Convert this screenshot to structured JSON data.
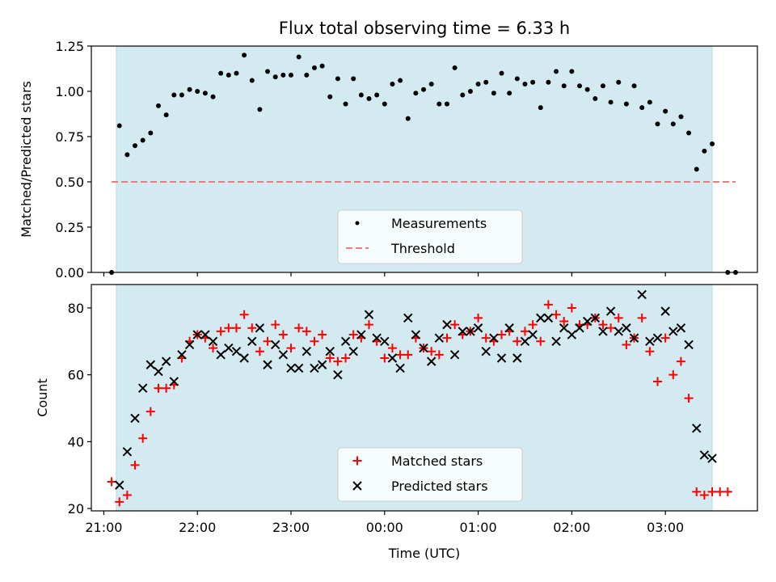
{
  "chart_data": [
    {
      "type": "scatter",
      "title": "Flux total observing time = 6.33 h",
      "xlabel": "",
      "ylabel": "Matched/Predicted stars",
      "ylim": [
        0,
        1.25
      ],
      "yticks": [
        "0.00",
        "0.25",
        "0.50",
        "0.75",
        "1.00",
        "1.25"
      ],
      "x_range_utc": [
        "20:52",
        "03:59"
      ],
      "observing_window": [
        "21:08",
        "03:30"
      ],
      "observing_window_color": "#d3eaf0",
      "legend_position": "lower center",
      "series": [
        {
          "name": "Measurements",
          "marker": "dot",
          "color": "#000000",
          "points": [
            [
              "21:05",
              0.0
            ],
            [
              "21:10",
              0.81
            ],
            [
              "21:15",
              0.65
            ],
            [
              "21:20",
              0.7
            ],
            [
              "21:25",
              0.73
            ],
            [
              "21:30",
              0.77
            ],
            [
              "21:35",
              0.92
            ],
            [
              "21:40",
              0.87
            ],
            [
              "21:45",
              0.98
            ],
            [
              "21:50",
              0.98
            ],
            [
              "21:55",
              1.01
            ],
            [
              "22:00",
              1.0
            ],
            [
              "22:05",
              0.99
            ],
            [
              "22:10",
              0.97
            ],
            [
              "22:15",
              1.1
            ],
            [
              "22:20",
              1.09
            ],
            [
              "22:25",
              1.1
            ],
            [
              "22:30",
              1.2
            ],
            [
              "22:35",
              1.06
            ],
            [
              "22:40",
              0.9
            ],
            [
              "22:45",
              1.11
            ],
            [
              "22:50",
              1.08
            ],
            [
              "22:55",
              1.09
            ],
            [
              "23:00",
              1.09
            ],
            [
              "23:05",
              1.19
            ],
            [
              "23:10",
              1.09
            ],
            [
              "23:15",
              1.13
            ],
            [
              "23:20",
              1.14
            ],
            [
              "23:25",
              0.97
            ],
            [
              "23:30",
              1.07
            ],
            [
              "23:35",
              0.93
            ],
            [
              "23:40",
              1.07
            ],
            [
              "23:45",
              0.98
            ],
            [
              "23:50",
              0.96
            ],
            [
              "23:55",
              0.98
            ],
            [
              "00:00",
              0.93
            ],
            [
              "00:05",
              1.04
            ],
            [
              "00:10",
              1.06
            ],
            [
              "00:15",
              0.85
            ],
            [
              "00:20",
              0.99
            ],
            [
              "00:25",
              1.01
            ],
            [
              "00:30",
              1.04
            ],
            [
              "00:35",
              0.93
            ],
            [
              "00:40",
              0.93
            ],
            [
              "00:45",
              1.13
            ],
            [
              "00:50",
              0.98
            ],
            [
              "00:55",
              1.0
            ],
            [
              "01:00",
              1.04
            ],
            [
              "01:05",
              1.05
            ],
            [
              "01:10",
              0.99
            ],
            [
              "01:15",
              1.1
            ],
            [
              "01:20",
              0.99
            ],
            [
              "01:25",
              1.07
            ],
            [
              "01:30",
              1.04
            ],
            [
              "01:35",
              1.05
            ],
            [
              "01:40",
              0.91
            ],
            [
              "01:45",
              1.05
            ],
            [
              "01:50",
              1.11
            ],
            [
              "01:55",
              1.03
            ],
            [
              "02:00",
              1.11
            ],
            [
              "02:05",
              1.03
            ],
            [
              "02:10",
              1.01
            ],
            [
              "02:15",
              0.96
            ],
            [
              "02:20",
              1.03
            ],
            [
              "02:25",
              0.94
            ],
            [
              "02:30",
              1.05
            ],
            [
              "02:35",
              0.93
            ],
            [
              "02:40",
              1.03
            ],
            [
              "02:45",
              0.91
            ],
            [
              "02:50",
              0.94
            ],
            [
              "02:55",
              0.82
            ],
            [
              "03:00",
              0.89
            ],
            [
              "03:05",
              0.82
            ],
            [
              "03:10",
              0.86
            ],
            [
              "03:15",
              0.77
            ],
            [
              "03:20",
              0.57
            ],
            [
              "03:25",
              0.67
            ],
            [
              "03:30",
              0.71
            ],
            [
              "03:40",
              0.0
            ],
            [
              "03:45",
              0.0
            ]
          ]
        },
        {
          "name": "Threshold",
          "marker": "dashed-line",
          "color": "#f07a7a",
          "points": [
            [
              "21:05",
              0.5
            ],
            [
              "03:45",
              0.5
            ]
          ]
        }
      ]
    },
    {
      "type": "scatter",
      "title": "",
      "xlabel": "Time (UTC)",
      "ylabel": "Count",
      "ylim": [
        19.3,
        87
      ],
      "yticks": [
        "20",
        "40",
        "60",
        "80"
      ],
      "xticks": [
        "21:00",
        "22:00",
        "23:00",
        "00:00",
        "01:00",
        "02:00",
        "03:00"
      ],
      "x_range_utc": [
        "20:52",
        "03:59"
      ],
      "observing_window": [
        "21:08",
        "03:30"
      ],
      "observing_window_color": "#d3eaf0",
      "legend_position": "lower center",
      "series": [
        {
          "name": "Matched stars",
          "marker": "plus",
          "color": "#ff0000",
          "points": [
            [
              "21:05",
              28
            ],
            [
              "21:10",
              22
            ],
            [
              "21:15",
              24
            ],
            [
              "21:20",
              33
            ],
            [
              "21:25",
              41
            ],
            [
              "21:30",
              49
            ],
            [
              "21:35",
              56
            ],
            [
              "21:40",
              56
            ],
            [
              "21:45",
              57
            ],
            [
              "21:50",
              65
            ],
            [
              "21:55",
              70
            ],
            [
              "22:00",
              72
            ],
            [
              "22:05",
              71
            ],
            [
              "22:10",
              68
            ],
            [
              "22:15",
              73
            ],
            [
              "22:20",
              74
            ],
            [
              "22:25",
              74
            ],
            [
              "22:30",
              78
            ],
            [
              "22:35",
              74
            ],
            [
              "22:40",
              67
            ],
            [
              "22:45",
              70
            ],
            [
              "22:50",
              75
            ],
            [
              "22:55",
              72
            ],
            [
              "23:00",
              68
            ],
            [
              "23:05",
              74
            ],
            [
              "23:10",
              73
            ],
            [
              "23:15",
              70
            ],
            [
              "23:20",
              72
            ],
            [
              "23:25",
              65
            ],
            [
              "23:30",
              64
            ],
            [
              "23:35",
              65
            ],
            [
              "23:40",
              72
            ],
            [
              "23:45",
              71
            ],
            [
              "23:50",
              75
            ],
            [
              "23:55",
              70
            ],
            [
              "00:00",
              65
            ],
            [
              "00:05",
              68
            ],
            [
              "00:10",
              66
            ],
            [
              "00:15",
              66
            ],
            [
              "00:20",
              71
            ],
            [
              "00:25",
              68
            ],
            [
              "00:30",
              67
            ],
            [
              "00:35",
              66
            ],
            [
              "00:40",
              71
            ],
            [
              "00:45",
              75
            ],
            [
              "00:50",
              72
            ],
            [
              "00:55",
              73
            ],
            [
              "01:00",
              77
            ],
            [
              "01:05",
              71
            ],
            [
              "01:10",
              70
            ],
            [
              "01:15",
              72
            ],
            [
              "01:20",
              73
            ],
            [
              "01:25",
              70
            ],
            [
              "01:30",
              73
            ],
            [
              "01:35",
              75
            ],
            [
              "01:40",
              70
            ],
            [
              "01:45",
              81
            ],
            [
              "01:50",
              78
            ],
            [
              "01:55",
              76
            ],
            [
              "02:00",
              80
            ],
            [
              "02:05",
              75
            ],
            [
              "02:10",
              75
            ],
            [
              "02:15",
              77
            ],
            [
              "02:20",
              75
            ],
            [
              "02:25",
              74
            ],
            [
              "02:30",
              77
            ],
            [
              "02:35",
              69
            ],
            [
              "02:40",
              71
            ],
            [
              "02:45",
              77
            ],
            [
              "02:50",
              67
            ],
            [
              "02:55",
              58
            ],
            [
              "03:00",
              71
            ],
            [
              "03:05",
              60
            ],
            [
              "03:10",
              64
            ],
            [
              "03:15",
              53
            ],
            [
              "03:20",
              25
            ],
            [
              "03:25",
              24
            ],
            [
              "03:30",
              25
            ],
            [
              "03:35",
              25
            ],
            [
              "03:40",
              25
            ]
          ]
        },
        {
          "name": "Predicted stars",
          "marker": "x",
          "color": "#000000",
          "points": [
            [
              "21:10",
              27
            ],
            [
              "21:15",
              37
            ],
            [
              "21:20",
              47
            ],
            [
              "21:25",
              56
            ],
            [
              "21:30",
              63
            ],
            [
              "21:35",
              61
            ],
            [
              "21:40",
              64
            ],
            [
              "21:45",
              58
            ],
            [
              "21:50",
              66
            ],
            [
              "21:55",
              69
            ],
            [
              "22:00",
              72
            ],
            [
              "22:05",
              72
            ],
            [
              "22:10",
              70
            ],
            [
              "22:15",
              66
            ],
            [
              "22:20",
              68
            ],
            [
              "22:25",
              67
            ],
            [
              "22:30",
              65
            ],
            [
              "22:35",
              70
            ],
            [
              "22:40",
              74
            ],
            [
              "22:45",
              63
            ],
            [
              "22:50",
              69
            ],
            [
              "22:55",
              66
            ],
            [
              "23:00",
              62
            ],
            [
              "23:05",
              62
            ],
            [
              "23:10",
              67
            ],
            [
              "23:15",
              62
            ],
            [
              "23:20",
              63
            ],
            [
              "23:25",
              67
            ],
            [
              "23:30",
              60
            ],
            [
              "23:35",
              70
            ],
            [
              "23:40",
              67
            ],
            [
              "23:45",
              72
            ],
            [
              "23:50",
              78
            ],
            [
              "23:55",
              71
            ],
            [
              "00:00",
              70
            ],
            [
              "00:05",
              65
            ],
            [
              "00:10",
              62
            ],
            [
              "00:15",
              77
            ],
            [
              "00:20",
              72
            ],
            [
              "00:25",
              68
            ],
            [
              "00:30",
              64
            ],
            [
              "00:35",
              71
            ],
            [
              "00:40",
              75
            ],
            [
              "00:45",
              66
            ],
            [
              "00:50",
              73
            ],
            [
              "00:55",
              73
            ],
            [
              "01:00",
              74
            ],
            [
              "01:05",
              67
            ],
            [
              "01:10",
              71
            ],
            [
              "01:15",
              65
            ],
            [
              "01:20",
              74
            ],
            [
              "01:25",
              65
            ],
            [
              "01:30",
              70
            ],
            [
              "01:35",
              72
            ],
            [
              "01:40",
              77
            ],
            [
              "01:45",
              77
            ],
            [
              "01:50",
              70
            ],
            [
              "01:55",
              74
            ],
            [
              "02:00",
              72
            ],
            [
              "02:05",
              74
            ],
            [
              "02:10",
              76
            ],
            [
              "02:15",
              77
            ],
            [
              "02:20",
              73
            ],
            [
              "02:25",
              79
            ],
            [
              "02:30",
              73
            ],
            [
              "02:35",
              74
            ],
            [
              "02:40",
              71
            ],
            [
              "02:45",
              84
            ],
            [
              "02:50",
              70
            ],
            [
              "02:55",
              71
            ],
            [
              "03:00",
              79
            ],
            [
              "03:05",
              73
            ],
            [
              "03:10",
              74
            ],
            [
              "03:15",
              69
            ],
            [
              "03:20",
              44
            ],
            [
              "03:25",
              36
            ],
            [
              "03:30",
              35
            ]
          ]
        }
      ]
    }
  ]
}
